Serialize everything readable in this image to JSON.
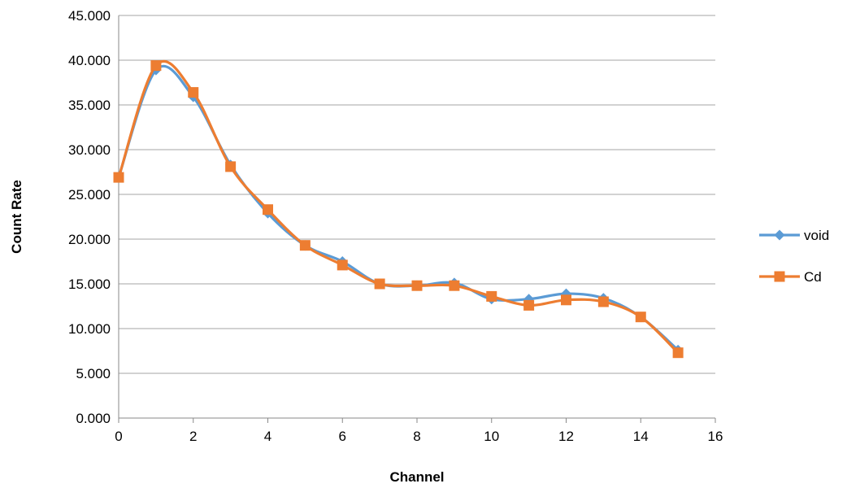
{
  "chart_data": {
    "type": "line",
    "title": "",
    "xlabel": "Channel",
    "ylabel": "Count Rate",
    "xlim": [
      0,
      16
    ],
    "ylim": [
      0,
      45
    ],
    "x_ticks": [
      "0",
      "2",
      "4",
      "6",
      "8",
      "10",
      "12",
      "14",
      "16"
    ],
    "y_ticks": [
      "0.000",
      "5.000",
      "10.000",
      "15.000",
      "20.000",
      "25.000",
      "30.000",
      "35.000",
      "40.000",
      "45.000"
    ],
    "grid": "horizontal",
    "legend_position": "right",
    "smooth": true,
    "x": [
      0,
      1,
      2,
      3,
      4,
      5,
      6,
      7,
      8,
      9,
      10,
      11,
      12,
      13,
      14,
      15
    ],
    "series": [
      {
        "name": "void",
        "color": "#5B9BD5",
        "marker": "diamond",
        "values": [
          26.9,
          38.9,
          35.9,
          28.3,
          22.9,
          19.3,
          17.5,
          15.0,
          14.8,
          15.1,
          13.3,
          13.3,
          13.9,
          13.4,
          11.3,
          7.6
        ]
      },
      {
        "name": "Cd",
        "color": "#ED7D31",
        "marker": "square",
        "values": [
          26.9,
          39.4,
          36.4,
          28.1,
          23.3,
          19.3,
          17.1,
          15.0,
          14.8,
          14.8,
          13.6,
          12.6,
          13.2,
          13.0,
          11.3,
          7.3
        ]
      }
    ]
  }
}
